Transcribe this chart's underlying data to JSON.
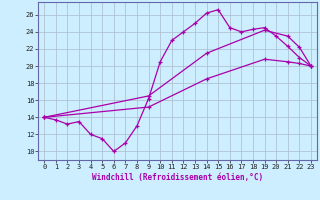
{
  "xlabel": "Windchill (Refroidissement éolien,°C)",
  "bg_color": "#cceeff",
  "line_color": "#aa00aa",
  "xlim": [
    -0.5,
    23.5
  ],
  "ylim": [
    9,
    27.5
  ],
  "yticks": [
    10,
    12,
    14,
    16,
    18,
    20,
    22,
    24,
    26
  ],
  "xticks": [
    0,
    1,
    2,
    3,
    4,
    5,
    6,
    7,
    8,
    9,
    10,
    11,
    12,
    13,
    14,
    15,
    16,
    17,
    18,
    19,
    20,
    21,
    22,
    23
  ],
  "line1_x": [
    0,
    1,
    2,
    3,
    4,
    5,
    6,
    7,
    8,
    9,
    10,
    11,
    12,
    13,
    14,
    15,
    16,
    17,
    18,
    19,
    20,
    21,
    22,
    23
  ],
  "line1_y": [
    14,
    13.7,
    13.2,
    13.5,
    12.0,
    11.5,
    10.0,
    11.0,
    13.0,
    16.2,
    20.5,
    23.0,
    24.0,
    25.0,
    26.2,
    26.6,
    24.5,
    24.0,
    24.3,
    24.5,
    23.5,
    22.3,
    21.0,
    20.0
  ],
  "line2_x": [
    0,
    9,
    14,
    19,
    21,
    22,
    23
  ],
  "line2_y": [
    14,
    16.5,
    21.5,
    24.2,
    23.5,
    22.2,
    20.0
  ],
  "line3_x": [
    0,
    9,
    14,
    19,
    21,
    22,
    23
  ],
  "line3_y": [
    14,
    15.2,
    18.5,
    20.8,
    20.5,
    20.3,
    20.0
  ],
  "grid_color": "#aabbcc",
  "marker": "+"
}
